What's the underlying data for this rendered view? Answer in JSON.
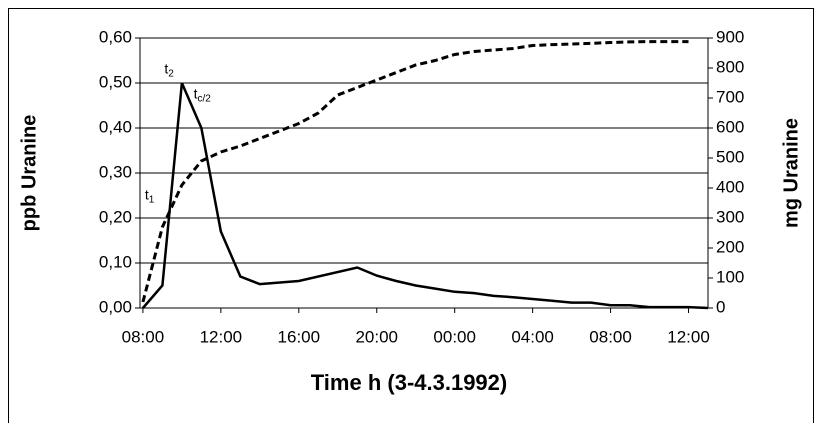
{
  "chart_data": {
    "type": "line",
    "xlabel": "Time h (3-4.3.1992)",
    "ylabel": "ppb Uranine",
    "y2label": "mg Uranine",
    "xlim": [
      -0.15,
      29
    ],
    "xticks": [
      {
        "value": 0,
        "label": "08:00"
      },
      {
        "value": 4,
        "label": "12:00"
      },
      {
        "value": 8,
        "label": "16:00"
      },
      {
        "value": 12,
        "label": "20:00"
      },
      {
        "value": 16,
        "label": "00:00"
      },
      {
        "value": 20,
        "label": "04:00"
      },
      {
        "value": 24,
        "label": "08:00"
      },
      {
        "value": 28,
        "label": "12:00"
      }
    ],
    "ylim": [
      0,
      0.6
    ],
    "yticks": [
      {
        "value": 0,
        "label": "0,00"
      },
      {
        "value": 0.1,
        "label": "0,10"
      },
      {
        "value": 0.2,
        "label": "0,20"
      },
      {
        "value": 0.3,
        "label": "0,30"
      },
      {
        "value": 0.4,
        "label": "0,40"
      },
      {
        "value": 0.5,
        "label": "0,50"
      },
      {
        "value": 0.6,
        "label": "0,60"
      }
    ],
    "y2lim": [
      0,
      900
    ],
    "y2ticks": [
      0,
      100,
      200,
      300,
      400,
      500,
      600,
      700,
      800,
      900
    ],
    "grid": true,
    "series": [
      {
        "color": "#000000",
        "dash": false,
        "x": [
          0,
          1,
          2,
          3,
          4,
          5,
          6,
          8,
          11,
          12,
          13,
          14,
          15,
          16,
          17,
          18,
          19,
          20,
          21,
          22,
          23,
          24,
          25,
          26,
          27,
          28,
          29
        ],
        "values": [
          0,
          0.05,
          0.5,
          0.4,
          0.17,
          0.07,
          0.053,
          0.06,
          0.09,
          0.072,
          0.06,
          0.05,
          0.043,
          0.036,
          0.033,
          0.027,
          0.024,
          0.02,
          0.016,
          0.012,
          0.012,
          0.006,
          0.006,
          0.002,
          0.002,
          0.002,
          0
        ]
      },
      {
        "color": "#000000",
        "dash": true,
        "axis": "y2",
        "x": [
          0,
          1,
          2,
          3,
          4,
          5,
          6,
          7,
          8,
          9,
          10,
          11,
          12,
          13,
          14,
          15,
          16,
          17,
          18,
          19,
          20,
          21,
          22,
          23,
          24,
          25,
          26,
          27,
          28
        ],
        "values": [
          20,
          270,
          410,
          490,
          520,
          540,
          565,
          590,
          615,
          650,
          710,
          735,
          760,
          785,
          810,
          825,
          845,
          855,
          860,
          865,
          875,
          878,
          880,
          882,
          885,
          887,
          888,
          888,
          888
        ]
      }
    ],
    "annotations": [
      {
        "text": "t",
        "sub": "1",
        "x": 0.1,
        "y": 0.25
      },
      {
        "text": "t",
        "sub": "2",
        "x": 1.1,
        "y": 0.53
      },
      {
        "text": "t",
        "sub": "c/2",
        "x": 2.6,
        "y": 0.475
      }
    ]
  }
}
